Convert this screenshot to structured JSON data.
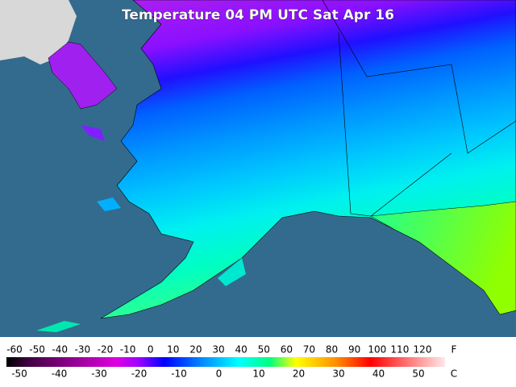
{
  "title": "Temperature 04 PM UTC Sat Apr 16",
  "legend": {
    "fahrenheit_unit": "F",
    "fahrenheit_labels": [
      -60,
      -50,
      -40,
      -30,
      -20,
      -10,
      0,
      10,
      20,
      30,
      40,
      50,
      60,
      70,
      80,
      90,
      100,
      110,
      120
    ],
    "celsius_unit": "C",
    "celsius_labels": [
      -50,
      -40,
      -30,
      -20,
      -10,
      0,
      10,
      20,
      30,
      40,
      50
    ]
  }
}
